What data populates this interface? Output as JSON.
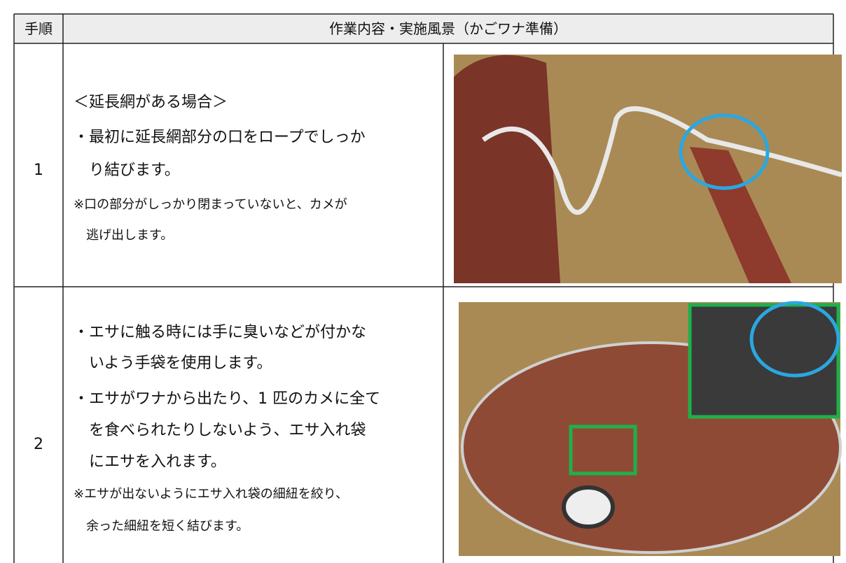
{
  "table": {
    "header": [
      "手順",
      "作業内容・実施風景（かごワナ準備）"
    ],
    "rows": [
      {
        "step": "1",
        "lines": [
          "＜延長網がある場合＞",
          "・最初に延長網部分の口をロープでしっか",
          "り結びます。",
          "※口の部分がしっかり閉まっていないと、カメが",
          "逃げ出します。"
        ]
      },
      {
        "step": "2",
        "lines": [
          "・エサに触る時には手に臭いなどが付かな",
          "いよう手袋を使用します。",
          "・エサがワナから出たり、1 匹のカメに全て",
          "を食べられたりしないよう、エサ入れ袋",
          "にエサを入れます。",
          "※エサが出ないようにエサ入れ袋の細紐を絞り、",
          "余った細紐を短く結びます。"
        ]
      }
    ]
  }
}
